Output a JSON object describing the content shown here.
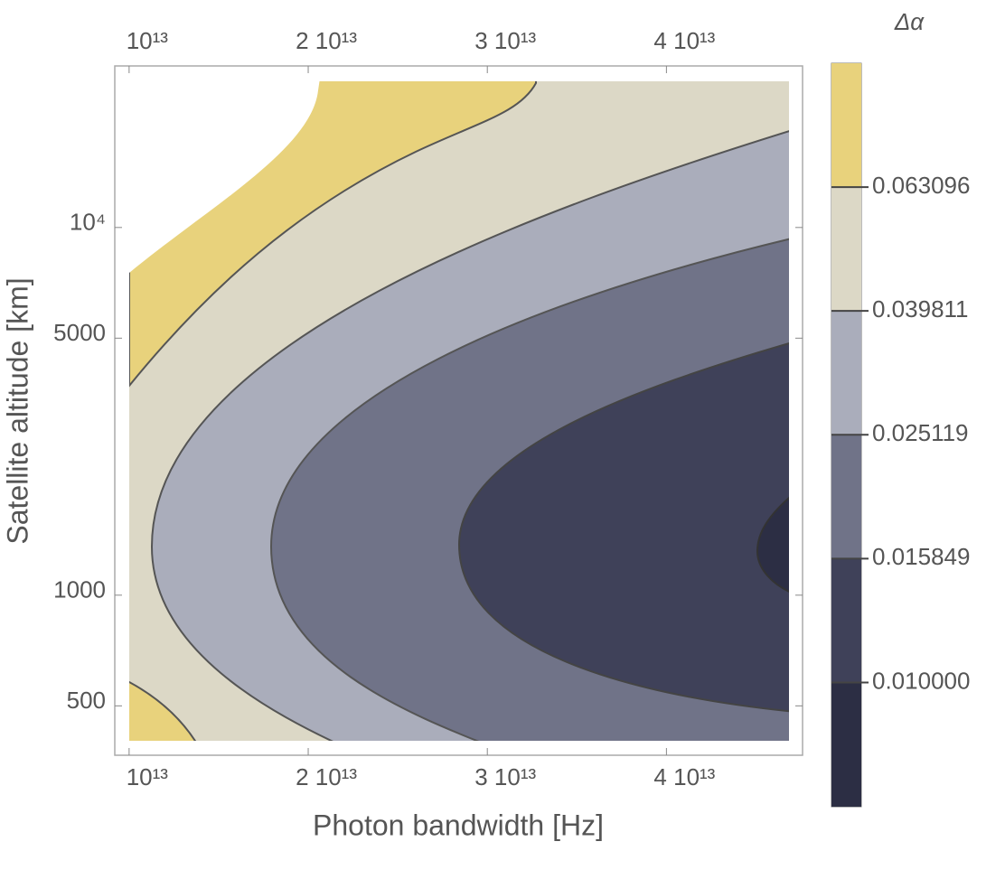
{
  "chart_data": {
    "type": "contour",
    "colorbar_title": "Δα",
    "xlabel": "Photon bandwidth [Hz]",
    "ylabel": "Satellite altitude [km]",
    "xlim": [
      9200000000000.0,
      47600000000000.0
    ],
    "xticks": [
      {
        "value": 10000000000000.0,
        "label": "10¹³"
      },
      {
        "value": 20000000000000.0,
        "label": "2 10¹³"
      },
      {
        "value": 30000000000000.0,
        "label": "3 10¹³"
      },
      {
        "value": 40000000000000.0,
        "label": "4 10¹³"
      }
    ],
    "ylim": [
      367,
      27500
    ],
    "yscale": "log",
    "yticks": [
      500,
      1000,
      5000,
      {
        "value": 10000,
        "label": "10⁴"
      }
    ],
    "levels": [
      0.063096,
      0.039811,
      0.025119,
      0.015849,
      {
        "value": 0.01,
        "label": "0.010000"
      }
    ],
    "colorbar_lim": [
      0.0063,
      0.1
    ],
    "colors": [
      "#e8d27c",
      "#dcd8c6",
      "#aaadbb",
      "#707388",
      "#3f4159",
      "#2c2e44"
    ]
  }
}
